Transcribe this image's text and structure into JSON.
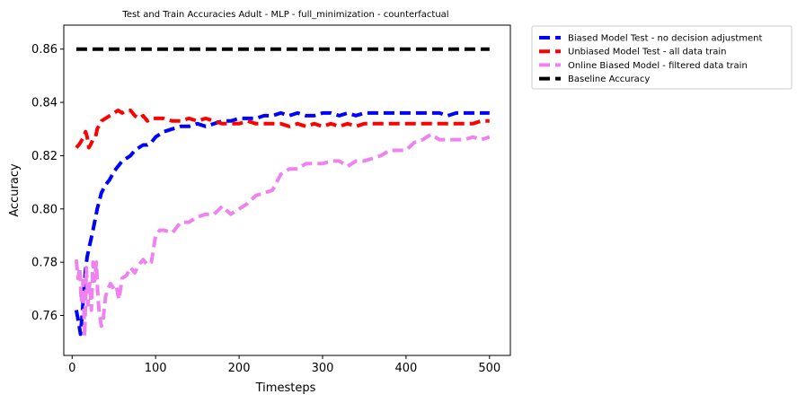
{
  "chart_data": {
    "type": "line",
    "title": "Test and Train Accuracies Adult - MLP - full_minimization - counterfactual",
    "xlabel": "Timesteps",
    "ylabel": "Accuracy",
    "xlim": [
      -10,
      525
    ],
    "ylim": [
      0.745,
      0.869
    ],
    "xticks": [
      0,
      100,
      200,
      300,
      400,
      500
    ],
    "yticks": [
      0.76,
      0.78,
      0.8,
      0.82,
      0.84,
      0.86
    ],
    "grid": false,
    "legend_position": "outside-top-right",
    "series": [
      {
        "name": "Biased Model Test - no decision adjustment",
        "color": "#0000ff",
        "x": [
          5,
          8,
          10,
          12,
          14,
          16,
          18,
          20,
          25,
          30,
          35,
          40,
          45,
          50,
          55,
          60,
          65,
          70,
          75,
          80,
          85,
          90,
          95,
          100,
          110,
          120,
          130,
          140,
          150,
          160,
          170,
          180,
          190,
          200,
          210,
          220,
          230,
          240,
          250,
          260,
          270,
          280,
          290,
          300,
          310,
          320,
          330,
          340,
          350,
          360,
          370,
          380,
          390,
          400,
          410,
          420,
          430,
          440,
          450,
          460,
          470,
          480,
          490,
          500
        ],
        "y": [
          0.762,
          0.757,
          0.753,
          0.76,
          0.769,
          0.777,
          0.782,
          0.785,
          0.792,
          0.8,
          0.806,
          0.809,
          0.811,
          0.814,
          0.816,
          0.818,
          0.819,
          0.82,
          0.822,
          0.823,
          0.824,
          0.824,
          0.825,
          0.827,
          0.829,
          0.83,
          0.831,
          0.831,
          0.832,
          0.831,
          0.832,
          0.833,
          0.833,
          0.834,
          0.834,
          0.834,
          0.835,
          0.835,
          0.836,
          0.835,
          0.836,
          0.835,
          0.835,
          0.836,
          0.836,
          0.835,
          0.836,
          0.835,
          0.836,
          0.836,
          0.836,
          0.836,
          0.836,
          0.836,
          0.836,
          0.836,
          0.836,
          0.836,
          0.835,
          0.836,
          0.836,
          0.836,
          0.836,
          0.836
        ]
      },
      {
        "name": "Unbiased Model Test - all data train",
        "color": "#ff0000",
        "x": [
          5,
          8,
          10,
          12,
          14,
          16,
          18,
          20,
          22,
          25,
          28,
          30,
          35,
          40,
          45,
          50,
          55,
          60,
          65,
          70,
          75,
          80,
          85,
          90,
          95,
          100,
          110,
          120,
          130,
          140,
          150,
          160,
          170,
          180,
          190,
          200,
          210,
          220,
          230,
          240,
          250,
          260,
          270,
          280,
          290,
          300,
          310,
          320,
          330,
          340,
          350,
          360,
          370,
          380,
          390,
          400,
          410,
          420,
          430,
          440,
          450,
          460,
          470,
          480,
          490,
          500
        ],
        "y": [
          0.823,
          0.824,
          0.825,
          0.826,
          0.827,
          0.829,
          0.827,
          0.823,
          0.824,
          0.826,
          0.827,
          0.83,
          0.833,
          0.834,
          0.835,
          0.836,
          0.837,
          0.836,
          0.837,
          0.837,
          0.835,
          0.834,
          0.835,
          0.833,
          0.834,
          0.834,
          0.834,
          0.833,
          0.833,
          0.834,
          0.833,
          0.834,
          0.833,
          0.832,
          0.832,
          0.832,
          0.833,
          0.832,
          0.832,
          0.832,
          0.832,
          0.831,
          0.832,
          0.831,
          0.832,
          0.831,
          0.832,
          0.831,
          0.832,
          0.831,
          0.832,
          0.832,
          0.832,
          0.832,
          0.832,
          0.832,
          0.832,
          0.832,
          0.832,
          0.832,
          0.832,
          0.832,
          0.832,
          0.832,
          0.833,
          0.833
        ]
      },
      {
        "name": "Online Biased Model - filtered data train",
        "color": "#ee82ee",
        "x": [
          5,
          7,
          9,
          11,
          13,
          15,
          17,
          19,
          21,
          23,
          25,
          27,
          29,
          31,
          33,
          35,
          37,
          40,
          43,
          46,
          50,
          53,
          56,
          60,
          65,
          70,
          75,
          80,
          85,
          90,
          95,
          100,
          105,
          110,
          120,
          130,
          140,
          150,
          160,
          170,
          180,
          190,
          200,
          210,
          220,
          230,
          240,
          250,
          260,
          270,
          280,
          290,
          300,
          310,
          320,
          330,
          340,
          350,
          360,
          370,
          380,
          390,
          400,
          410,
          420,
          430,
          440,
          450,
          460,
          470,
          480,
          490,
          500
        ],
        "y": [
          0.781,
          0.774,
          0.778,
          0.765,
          0.773,
          0.752,
          0.778,
          0.764,
          0.772,
          0.762,
          0.78,
          0.773,
          0.78,
          0.766,
          0.76,
          0.756,
          0.758,
          0.767,
          0.77,
          0.772,
          0.77,
          0.771,
          0.766,
          0.774,
          0.775,
          0.778,
          0.776,
          0.779,
          0.781,
          0.779,
          0.78,
          0.79,
          0.792,
          0.792,
          0.791,
          0.795,
          0.795,
          0.797,
          0.798,
          0.798,
          0.801,
          0.798,
          0.8,
          0.802,
          0.805,
          0.806,
          0.807,
          0.813,
          0.815,
          0.815,
          0.817,
          0.817,
          0.817,
          0.818,
          0.818,
          0.816,
          0.818,
          0.818,
          0.819,
          0.82,
          0.822,
          0.822,
          0.822,
          0.825,
          0.826,
          0.828,
          0.826,
          0.826,
          0.826,
          0.826,
          0.827,
          0.826,
          0.827
        ]
      },
      {
        "name": "Baseline Accuracy",
        "color": "#000000",
        "x": [
          5,
          500
        ],
        "y": [
          0.86,
          0.86
        ]
      }
    ]
  }
}
